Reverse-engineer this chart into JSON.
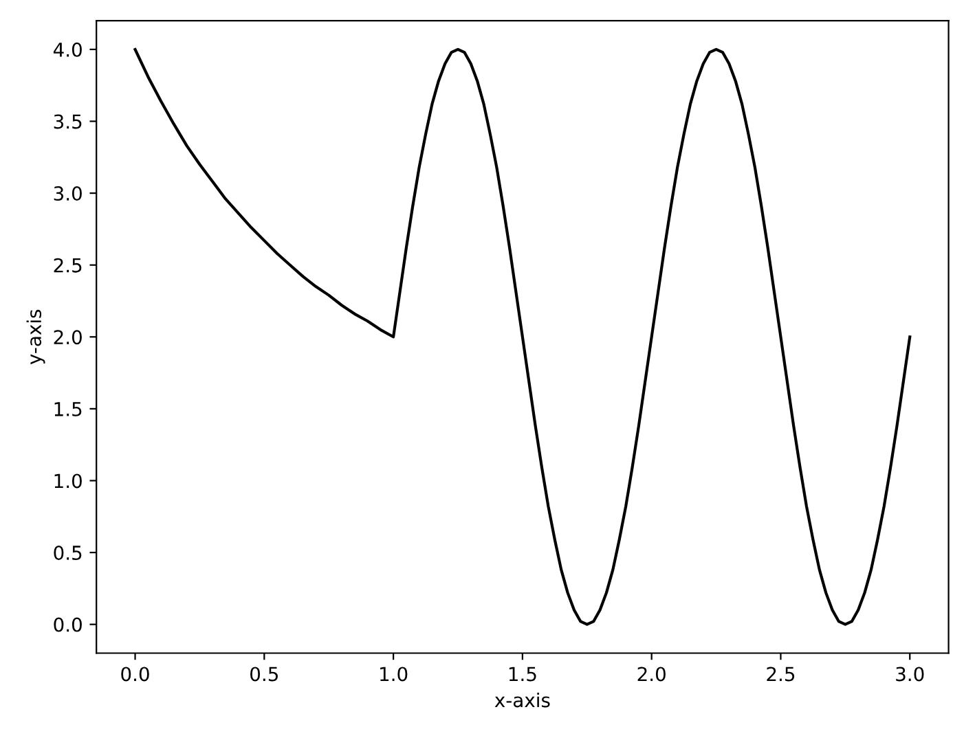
{
  "chart_data": {
    "type": "line",
    "xlabel": "x-axis",
    "ylabel": "y-axis",
    "series": [
      {
        "color": "#000000",
        "x": [
          0,
          0.05,
          0.1,
          0.15,
          0.2,
          0.25,
          0.3,
          0.35,
          0.4,
          0.45,
          0.5,
          0.55,
          0.6,
          0.65,
          0.7,
          0.75,
          0.8,
          0.85,
          0.9,
          0.95,
          1.0,
          1.025,
          1.05,
          1.075,
          1.1,
          1.125,
          1.15,
          1.175,
          1.2,
          1.225,
          1.25,
          1.275,
          1.3,
          1.325,
          1.35,
          1.375,
          1.4,
          1.425,
          1.45,
          1.475,
          1.5,
          1.525,
          1.55,
          1.575,
          1.6,
          1.625,
          1.65,
          1.675,
          1.7,
          1.725,
          1.75,
          1.775,
          1.8,
          1.825,
          1.85,
          1.875,
          1.9,
          1.925,
          1.95,
          1.975,
          2.0,
          2.025,
          2.05,
          2.075,
          2.1,
          2.125,
          2.15,
          2.175,
          2.2,
          2.225,
          2.25,
          2.275,
          2.3,
          2.325,
          2.35,
          2.375,
          2.4,
          2.425,
          2.45,
          2.475,
          2.5,
          2.525,
          2.55,
          2.575,
          2.6,
          2.625,
          2.65,
          2.675,
          2.7,
          2.725,
          2.75,
          2.775,
          2.8,
          2.825,
          2.85,
          2.875,
          2.9,
          2.925,
          2.95,
          2.975,
          3.0
        ],
        "values": [
          4,
          3.81,
          3.64,
          3.48,
          3.33,
          3.2,
          3.08,
          2.96,
          2.86,
          2.76,
          2.67,
          2.58,
          2.5,
          2.42,
          2.35,
          2.29,
          2.22,
          2.16,
          2.11,
          2.05,
          2,
          2.31,
          2.62,
          2.91,
          3.18,
          3.41,
          3.62,
          3.78,
          3.9,
          3.98,
          4,
          3.98,
          3.9,
          3.78,
          3.62,
          3.41,
          3.18,
          2.91,
          2.62,
          2.31,
          2,
          1.69,
          1.38,
          1.09,
          0.82,
          0.59,
          0.38,
          0.22,
          0.1,
          0.02,
          0,
          0.02,
          0.1,
          0.22,
          0.38,
          0.59,
          0.82,
          1.09,
          1.38,
          1.69,
          2,
          2.31,
          2.62,
          2.91,
          3.18,
          3.41,
          3.62,
          3.78,
          3.9,
          3.98,
          4,
          3.98,
          3.9,
          3.78,
          3.62,
          3.41,
          3.18,
          2.91,
          2.62,
          2.31,
          2,
          1.69,
          1.38,
          1.09,
          0.82,
          0.59,
          0.38,
          0.22,
          0.1,
          0.02,
          0,
          0.02,
          0.1,
          0.22,
          0.38,
          0.59,
          0.82,
          1.09,
          1.38,
          1.69,
          2
        ]
      }
    ],
    "xlim": [
      -0.15,
      3.15
    ],
    "xticks": [
      {
        "value": 0,
        "label": "0.0"
      },
      0.5,
      {
        "value": 1,
        "label": "1.0"
      },
      1.5,
      {
        "value": 2,
        "label": "2.0"
      },
      2.5,
      {
        "value": 3,
        "label": "3.0"
      }
    ],
    "ylim": [
      -0.2,
      4.2
    ],
    "yticks": [
      {
        "value": 0,
        "label": "0.0"
      },
      0.5,
      {
        "value": 1,
        "label": "1.0"
      },
      1.5,
      {
        "value": 2,
        "label": "2.0"
      },
      2.5,
      {
        "value": 3,
        "label": "3.0"
      },
      3.5,
      {
        "value": 4,
        "label": "4.0"
      }
    ],
    "grid": false,
    "legend": false,
    "line_style": "solid",
    "marker": "none"
  }
}
